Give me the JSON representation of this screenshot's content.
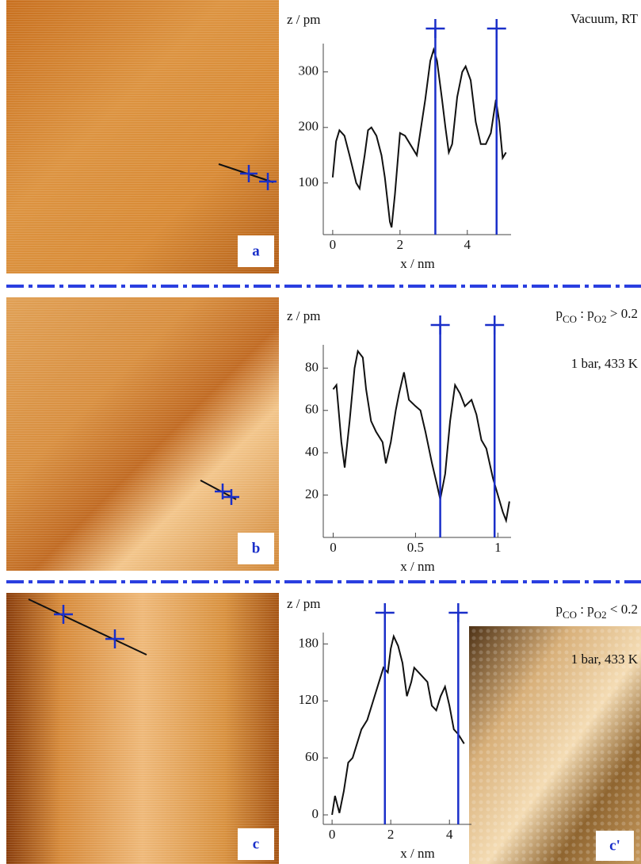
{
  "chart_data": [
    {
      "type": "line",
      "ylabel": "z / pm",
      "xlabel": "x / nm",
      "xlim": [
        -0.28,
        5.3
      ],
      "ylim": [
        7,
        351
      ],
      "xticks": [
        0,
        2,
        4
      ],
      "yticks": [
        100,
        200,
        300
      ],
      "cursors": [
        3.05,
        4.87
      ],
      "series": [
        {
          "color": "#111111",
          "x": [
            0,
            0.1,
            0.2,
            0.35,
            0.5,
            0.7,
            0.8,
            0.95,
            1.05,
            1.15,
            1.3,
            1.45,
            1.55,
            1.7,
            1.75,
            1.85,
            2.0,
            2.15,
            2.35,
            2.5,
            2.6,
            2.75,
            2.9,
            3.0,
            3.1,
            3.25,
            3.35,
            3.45,
            3.55,
            3.7,
            3.85,
            3.95,
            4.1,
            4.25,
            4.4,
            4.55,
            4.7,
            4.85,
            4.95,
            5.05,
            5.15
          ],
          "values": [
            110,
            175,
            195,
            185,
            150,
            100,
            90,
            150,
            195,
            200,
            185,
            150,
            110,
            30,
            20,
            80,
            190,
            185,
            165,
            150,
            190,
            250,
            320,
            340,
            320,
            250,
            200,
            155,
            170,
            255,
            300,
            310,
            285,
            210,
            170,
            170,
            190,
            250,
            210,
            145,
            155
          ]
        }
      ]
    },
    {
      "type": "line",
      "ylabel": "z / pm",
      "xlabel": "x / nm",
      "xlim": [
        -0.06,
        1.08
      ],
      "ylim": [
        0,
        91
      ],
      "xticks": [
        0,
        0.5,
        1
      ],
      "yticks": [
        20,
        40,
        60,
        80
      ],
      "cursors": [
        0.65,
        0.98
      ],
      "series": [
        {
          "color": "#111111",
          "x": [
            0,
            0.02,
            0.05,
            0.07,
            0.1,
            0.13,
            0.15,
            0.18,
            0.2,
            0.23,
            0.26,
            0.3,
            0.32,
            0.35,
            0.38,
            0.4,
            0.43,
            0.46,
            0.5,
            0.53,
            0.56,
            0.6,
            0.63,
            0.65,
            0.68,
            0.71,
            0.74,
            0.77,
            0.8,
            0.84,
            0.87,
            0.9,
            0.93,
            0.97,
            1.0,
            1.03,
            1.05,
            1.07
          ],
          "values": [
            70,
            72,
            45,
            33,
            55,
            80,
            88,
            85,
            70,
            55,
            50,
            45,
            35,
            45,
            60,
            68,
            78,
            65,
            62,
            60,
            50,
            35,
            25,
            18,
            30,
            55,
            72,
            68,
            62,
            65,
            58,
            46,
            42,
            28,
            20,
            12,
            8,
            17
          ]
        }
      ]
    },
    {
      "type": "line",
      "ylabel": "z / pm",
      "xlabel": "x / nm",
      "xlim": [
        -0.3,
        4.75
      ],
      "ylim": [
        -10,
        192
      ],
      "xticks": [
        0,
        2,
        4
      ],
      "yticks": [
        0,
        60,
        120,
        180
      ],
      "cursors": [
        1.8,
        4.3
      ],
      "series": [
        {
          "color": "#111111",
          "x": [
            0,
            0.1,
            0.25,
            0.4,
            0.55,
            0.7,
            0.85,
            1.0,
            1.2,
            1.4,
            1.6,
            1.75,
            1.9,
            2.0,
            2.1,
            2.25,
            2.4,
            2.55,
            2.7,
            2.8,
            2.95,
            3.1,
            3.25,
            3.4,
            3.55,
            3.7,
            3.85,
            4.0,
            4.15,
            4.3,
            4.5
          ],
          "values": [
            0,
            20,
            2,
            25,
            55,
            60,
            75,
            90,
            100,
            120,
            140,
            155,
            150,
            175,
            188,
            178,
            160,
            125,
            140,
            155,
            150,
            145,
            140,
            115,
            110,
            125,
            135,
            115,
            90,
            85,
            75
          ]
        }
      ]
    }
  ],
  "panels": [
    {
      "label": "a",
      "conditions": [
        "Vacuum, RT"
      ]
    },
    {
      "label": "b",
      "ratio": [
        {
          "text": "p"
        },
        {
          "text": "CO",
          "sub": true
        },
        {
          "text": " : p"
        },
        {
          "text": "O2",
          "sub": true
        },
        {
          "text": " > 0.2"
        }
      ],
      "conditions": [
        "1 bar, 433 K"
      ]
    },
    {
      "label": "c",
      "ratio": [
        {
          "text": "p"
        },
        {
          "text": "CO",
          "sub": true
        },
        {
          "text": " : p"
        },
        {
          "text": "O2",
          "sub": true
        },
        {
          "text": " < 0.2"
        }
      ],
      "conditions": [
        "1 bar, 433 K"
      ]
    }
  ],
  "inset": {
    "label": "c'"
  }
}
